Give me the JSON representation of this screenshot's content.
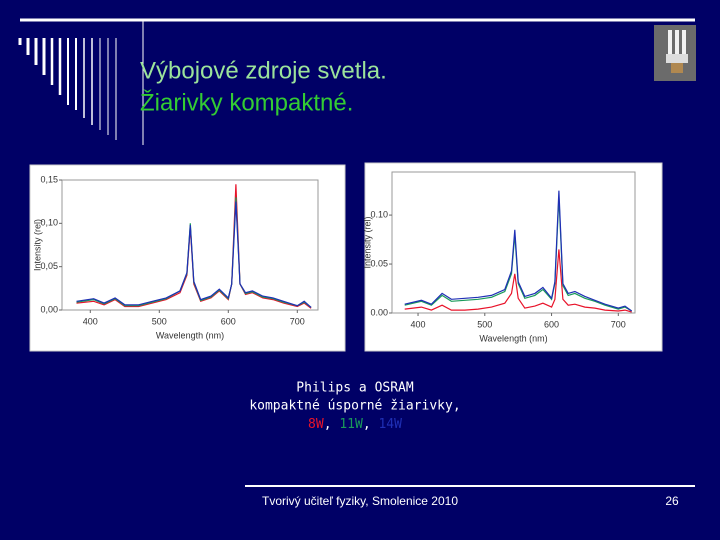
{
  "slide": {
    "title_line1": "Výbojové zdroje svetla.",
    "title_line2": "Žiarivky kompaktné.",
    "caption_line1": "Philips a OSRAM",
    "caption_line2": "kompaktné úsporné žiarivky,",
    "legend_separator": ", ",
    "footer": "Tvorivý učiteľ fyziky, Smolenice 2010",
    "page_number": "26"
  },
  "chart_data": [
    {
      "type": "line",
      "x_label": "Wavelength (nm)",
      "y_label": "Intensity (rel)",
      "xlim": [
        359,
        730
      ],
      "ylim": [
        0,
        0.15
      ],
      "xticks": [
        400,
        500,
        600,
        700
      ],
      "yticks": [
        {
          "value": 0,
          "label": "0,00"
        },
        {
          "value": 0.05,
          "label": "0,05"
        },
        {
          "value": 0.1,
          "label": "0,10"
        },
        {
          "value": 0.15,
          "label": "0,15"
        }
      ],
      "x": [
        380,
        405,
        420,
        436,
        450,
        470,
        490,
        510,
        530,
        540,
        545,
        550,
        560,
        575,
        587,
        600,
        605,
        611,
        617,
        625,
        635,
        650,
        665,
        680,
        700,
        710,
        720
      ],
      "series": [
        {
          "name": "8W",
          "color": "#e8132a",
          "values": [
            0.008,
            0.01,
            0.006,
            0.012,
            0.004,
            0.004,
            0.008,
            0.012,
            0.02,
            0.04,
            0.095,
            0.03,
            0.01,
            0.014,
            0.022,
            0.012,
            0.03,
            0.145,
            0.03,
            0.018,
            0.02,
            0.014,
            0.012,
            0.008,
            0.004,
            0.008,
            0.002
          ]
        },
        {
          "name": "11W",
          "color": "#1a9a5a",
          "values": [
            0.009,
            0.012,
            0.007,
            0.013,
            0.005,
            0.005,
            0.009,
            0.013,
            0.022,
            0.042,
            0.1,
            0.032,
            0.011,
            0.015,
            0.023,
            0.013,
            0.03,
            0.13,
            0.03,
            0.019,
            0.021,
            0.015,
            0.013,
            0.009,
            0.005,
            0.009,
            0.003
          ]
        },
        {
          "name": "14W",
          "color": "#1f2fb5",
          "values": [
            0.01,
            0.013,
            0.008,
            0.014,
            0.006,
            0.006,
            0.01,
            0.014,
            0.022,
            0.043,
            0.098,
            0.033,
            0.012,
            0.016,
            0.024,
            0.014,
            0.03,
            0.125,
            0.03,
            0.02,
            0.022,
            0.016,
            0.014,
            0.01,
            0.005,
            0.01,
            0.003
          ]
        }
      ]
    },
    {
      "type": "line",
      "x_label": "Wavelength (nm)",
      "y_label": "Intensity (rel)",
      "xlim": [
        361,
        725
      ],
      "ylim": [
        0,
        0.144
      ],
      "xticks": [
        400,
        500,
        600,
        700
      ],
      "yticks": [
        {
          "value": 0,
          "label": "0.00"
        },
        {
          "value": 0.05,
          "label": "0.05"
        },
        {
          "value": 0.1,
          "label": "0.10"
        }
      ],
      "x": [
        380,
        405,
        420,
        436,
        450,
        470,
        490,
        510,
        530,
        540,
        545,
        550,
        560,
        575,
        587,
        600,
        605,
        611,
        617,
        625,
        635,
        650,
        665,
        680,
        700,
        710,
        720
      ],
      "series": [
        {
          "color": "#e8132a",
          "values": [
            0.004,
            0.006,
            0.003,
            0.008,
            0.003,
            0.003,
            0.004,
            0.006,
            0.01,
            0.02,
            0.04,
            0.015,
            0.005,
            0.007,
            0.01,
            0.006,
            0.014,
            0.065,
            0.014,
            0.008,
            0.009,
            0.006,
            0.005,
            0.003,
            0.002,
            0.003,
            0.001
          ]
        },
        {
          "color": "#1a9a5a",
          "values": [
            0.008,
            0.012,
            0.008,
            0.018,
            0.012,
            0.013,
            0.014,
            0.016,
            0.022,
            0.04,
            0.08,
            0.03,
            0.015,
            0.018,
            0.024,
            0.014,
            0.03,
            0.118,
            0.028,
            0.018,
            0.02,
            0.015,
            0.012,
            0.008,
            0.004,
            0.006,
            0.002
          ]
        },
        {
          "color": "#1f2fb5",
          "values": [
            0.009,
            0.013,
            0.009,
            0.02,
            0.014,
            0.015,
            0.016,
            0.018,
            0.024,
            0.043,
            0.085,
            0.032,
            0.017,
            0.02,
            0.026,
            0.015,
            0.032,
            0.125,
            0.03,
            0.02,
            0.022,
            0.017,
            0.013,
            0.009,
            0.005,
            0.007,
            0.002
          ]
        }
      ]
    }
  ]
}
